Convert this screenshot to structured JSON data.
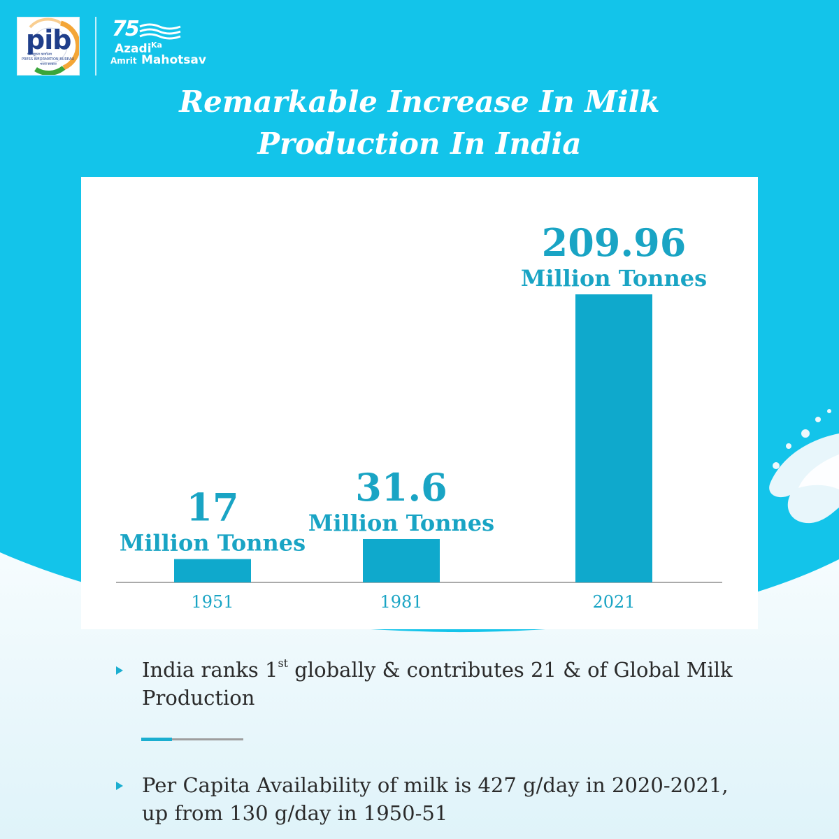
{
  "header": {
    "pib_logo": {
      "icon": "pib-logo",
      "text": "pib",
      "caption_line1": "पत्र सूचना कार्यालय",
      "caption_line2": "PRESS INFORMATION BUREAU",
      "caption_line3": "भारत सरकार"
    },
    "azadi_logo": {
      "icon": "azadi-ka-amrit-mahotsav-logo",
      "number": "75",
      "word1": "Azadi",
      "word2": "Ka",
      "word3": "Amrit",
      "word4": "Mahotsav"
    }
  },
  "title": {
    "line1": "Remarkable Increase In Milk",
    "line2": "Production In India"
  },
  "chart_data": {
    "type": "bar",
    "categories": [
      "1951",
      "1981",
      "2021"
    ],
    "values": [
      17,
      31.6,
      209.96
    ],
    "value_labels": [
      "17",
      "31.6",
      "209.96"
    ],
    "unit_label": "Million Tonnes",
    "title": "",
    "xlabel": "",
    "ylabel": "",
    "ylim": [
      0,
      209.96
    ],
    "grid": false,
    "legend": "none",
    "colors": {
      "bar": "#0fa9cc",
      "label": "#19a4c4",
      "axis": "#aaaaaa"
    }
  },
  "points": {
    "item1_pre": "India ranks 1",
    "item1_sup": "st",
    "item1_post": " globally & contributes 21 & of Global Milk Production",
    "item2": "Per Capita Availability of milk is 427 g/day in 2020-2021, up from 130 g/day in 1950-51"
  },
  "colors": {
    "background": "#13c4ea",
    "accent": "#1aaed0",
    "panel": "#ffffff",
    "text": "#2a2a2a"
  },
  "decor": {
    "splash_icon": "milk-splash"
  }
}
